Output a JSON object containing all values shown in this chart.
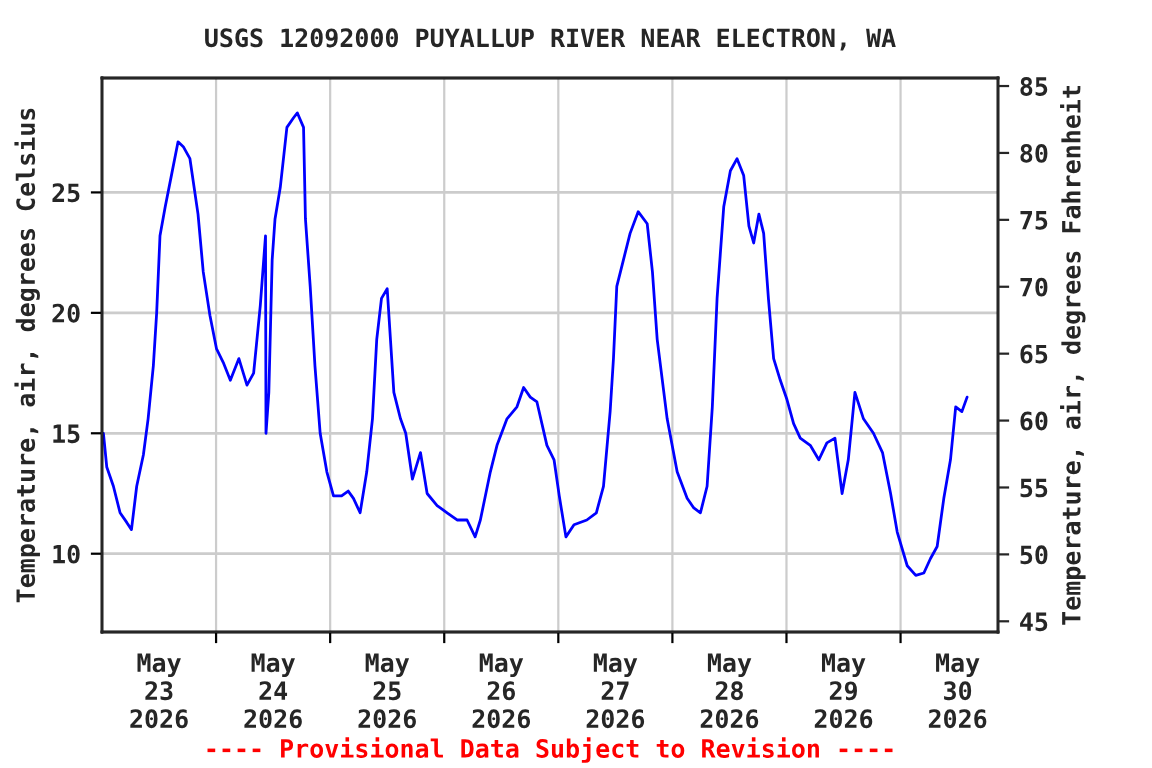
{
  "chart_data": {
    "type": "line",
    "title": "USGS 12092000 PUYALLUP RIVER NEAR ELECTRON, WA",
    "ylabel": "Temperature, air, degrees Celsius",
    "y2label": "Temperature, air, degrees Fahrenheit",
    "annotations": [
      "---- Provisional Data Subject to Revision ----"
    ],
    "xlim": [
      "2026-05-23T00:00",
      "2026-05-30T20:30"
    ],
    "xticks": [
      {
        "value": "2026-05-23T12:00",
        "label": "May\n23\n2026"
      },
      {
        "value": "2026-05-24T00:00",
        "label": null
      },
      {
        "value": "2026-05-24T12:00",
        "label": "May\n24\n2026"
      },
      {
        "value": "2026-05-25T00:00",
        "label": null
      },
      {
        "value": "2026-05-25T12:00",
        "label": "May\n25\n2026"
      },
      {
        "value": "2026-05-26T00:00",
        "label": null
      },
      {
        "value": "2026-05-26T12:00",
        "label": "May\n26\n2026"
      },
      {
        "value": "2026-05-27T00:00",
        "label": null
      },
      {
        "value": "2026-05-27T12:00",
        "label": "May\n27\n2026"
      },
      {
        "value": "2026-05-28T00:00",
        "label": null
      },
      {
        "value": "2026-05-28T12:00",
        "label": "May\n28\n2026"
      },
      {
        "value": "2026-05-29T00:00",
        "label": null
      },
      {
        "value": "2026-05-29T12:00",
        "label": "May\n29\n2026"
      },
      {
        "value": "2026-05-30T00:00",
        "label": null
      },
      {
        "value": "2026-05-30T12:00",
        "label": "May\n30\n2026"
      }
    ],
    "ylim": [
      6.75,
      29.75
    ],
    "yticks": [
      10,
      15,
      20,
      25
    ],
    "y2lim": [
      44.2,
      85.6
    ],
    "y2ticks": [
      45,
      50,
      55,
      60,
      65,
      70,
      75,
      80,
      85
    ],
    "grid": true,
    "line_style": "solid",
    "marker": "none",
    "series": [
      {
        "color": "#0000ff",
        "x": [
          "2026-05-23T00:18",
          "2026-05-23T01:00",
          "2026-05-23T02:24",
          "2026-05-23T03:48",
          "2026-05-23T05:12",
          "2026-05-23T06:12",
          "2026-05-23T07:18",
          "2026-05-23T08:42",
          "2026-05-23T09:42",
          "2026-05-23T10:48",
          "2026-05-23T11:30",
          "2026-05-23T12:12",
          "2026-05-23T13:18",
          "2026-05-23T14:42",
          "2026-05-23T16:00",
          "2026-05-23T17:06",
          "2026-05-23T18:30",
          "2026-05-23T20:12",
          "2026-05-23T21:18",
          "2026-05-23T22:42",
          "2026-05-24T00:06",
          "2026-05-24T01:36",
          "2026-05-24T03:00",
          "2026-05-24T04:48",
          "2026-05-24T06:30",
          "2026-05-24T07:54",
          "2026-05-24T09:18",
          "2026-05-24T10:24",
          "2026-05-24T10:30",
          "2026-05-24T11:06",
          "2026-05-24T11:48",
          "2026-05-24T12:24",
          "2026-05-24T13:30",
          "2026-05-24T14:54",
          "2026-05-24T16:18",
          "2026-05-24T17:06",
          "2026-05-24T18:24",
          "2026-05-24T18:48",
          "2026-05-24T19:48",
          "2026-05-24T20:48",
          "2026-05-24T21:54",
          "2026-05-24T23:18",
          "2026-05-25T00:42",
          "2026-05-25T02:24",
          "2026-05-25T03:48",
          "2026-05-25T04:54",
          "2026-05-25T06:18",
          "2026-05-25T07:42",
          "2026-05-25T08:54",
          "2026-05-25T09:48",
          "2026-05-25T10:48",
          "2026-05-25T12:00",
          "2026-05-25T13:24",
          "2026-05-25T14:48",
          "2026-05-25T15:54",
          "2026-05-25T17:18",
          "2026-05-25T19:00",
          "2026-05-25T20:24",
          "2026-05-25T22:30",
          "2026-05-26T00:36",
          "2026-05-26T02:42",
          "2026-05-26T04:48",
          "2026-05-26T06:30",
          "2026-05-26T07:36",
          "2026-05-26T09:42",
          "2026-05-26T11:06",
          "2026-05-26T13:12",
          "2026-05-26T15:18",
          "2026-05-26T16:42",
          "2026-05-26T18:06",
          "2026-05-26T19:30",
          "2026-05-26T21:36",
          "2026-05-26T23:06",
          "2026-05-27T00:12",
          "2026-05-27T01:36",
          "2026-05-27T03:18",
          "2026-05-27T06:00",
          "2026-05-27T08:00",
          "2026-05-27T09:30",
          "2026-05-27T10:54",
          "2026-05-27T11:36",
          "2026-05-27T12:18",
          "2026-05-27T13:42",
          "2026-05-27T15:06",
          "2026-05-27T16:48",
          "2026-05-27T18:42",
          "2026-05-27T19:48",
          "2026-05-27T20:48",
          "2026-05-27T22:54",
          "2026-05-28T01:00",
          "2026-05-28T03:06",
          "2026-05-28T04:30",
          "2026-05-28T05:54",
          "2026-05-28T07:18",
          "2026-05-28T08:24",
          "2026-05-28T09:24",
          "2026-05-28T10:48",
          "2026-05-28T12:12",
          "2026-05-28T13:36",
          "2026-05-28T15:00",
          "2026-05-28T16:06",
          "2026-05-28T17:06",
          "2026-05-28T18:12",
          "2026-05-28T19:12",
          "2026-05-28T20:12",
          "2026-05-28T21:18",
          "2026-05-28T22:42",
          "2026-05-29T00:06",
          "2026-05-29T01:30",
          "2026-05-29T02:54",
          "2026-05-29T05:00",
          "2026-05-29T06:48",
          "2026-05-29T08:30",
          "2026-05-29T10:12",
          "2026-05-29T11:42",
          "2026-05-29T13:00",
          "2026-05-29T14:24",
          "2026-05-29T16:12",
          "2026-05-29T18:18",
          "2026-05-29T20:12",
          "2026-05-29T21:54",
          "2026-05-29T23:18",
          "2026-05-30T01:24",
          "2026-05-30T03:12",
          "2026-05-30T04:54",
          "2026-05-30T06:18",
          "2026-05-30T07:42",
          "2026-05-30T09:06",
          "2026-05-30T10:30",
          "2026-05-30T11:36",
          "2026-05-30T12:54",
          "2026-05-30T14:00"
        ],
        "values": [
          15.0,
          13.6,
          12.8,
          11.7,
          11.3,
          11.0,
          12.8,
          14.1,
          15.6,
          17.8,
          20.0,
          23.2,
          24.4,
          25.8,
          27.1,
          26.9,
          26.4,
          24.1,
          21.7,
          19.9,
          18.5,
          17.9,
          17.2,
          18.1,
          17.0,
          17.5,
          20.3,
          23.2,
          15.0,
          16.7,
          22.2,
          23.9,
          25.2,
          27.7,
          28.1,
          28.3,
          27.7,
          23.9,
          21.1,
          17.8,
          15.0,
          13.4,
          12.4,
          12.4,
          12.6,
          12.3,
          11.7,
          13.4,
          15.6,
          18.9,
          20.6,
          21.0,
          16.7,
          15.6,
          15.0,
          13.1,
          14.2,
          12.5,
          12.0,
          11.7,
          11.4,
          11.4,
          10.7,
          11.4,
          13.4,
          14.5,
          15.6,
          16.1,
          16.9,
          16.5,
          16.3,
          14.5,
          13.9,
          12.4,
          10.7,
          11.2,
          11.4,
          11.7,
          12.8,
          15.9,
          18.1,
          21.1,
          22.2,
          23.3,
          24.2,
          23.7,
          21.7,
          18.9,
          15.6,
          13.4,
          12.3,
          11.9,
          11.7,
          12.8,
          16.1,
          20.6,
          24.4,
          25.9,
          26.4,
          25.7,
          23.6,
          22.9,
          24.1,
          23.3,
          20.6,
          18.1,
          17.2,
          16.4,
          15.4,
          14.8,
          14.5,
          13.9,
          14.6,
          14.8,
          12.5,
          13.9,
          16.7,
          15.6,
          15.0,
          14.2,
          12.5,
          10.9,
          9.5,
          9.1,
          9.2,
          9.8,
          10.3,
          12.3,
          13.9,
          16.1,
          15.9,
          16.5
        ]
      }
    ]
  }
}
